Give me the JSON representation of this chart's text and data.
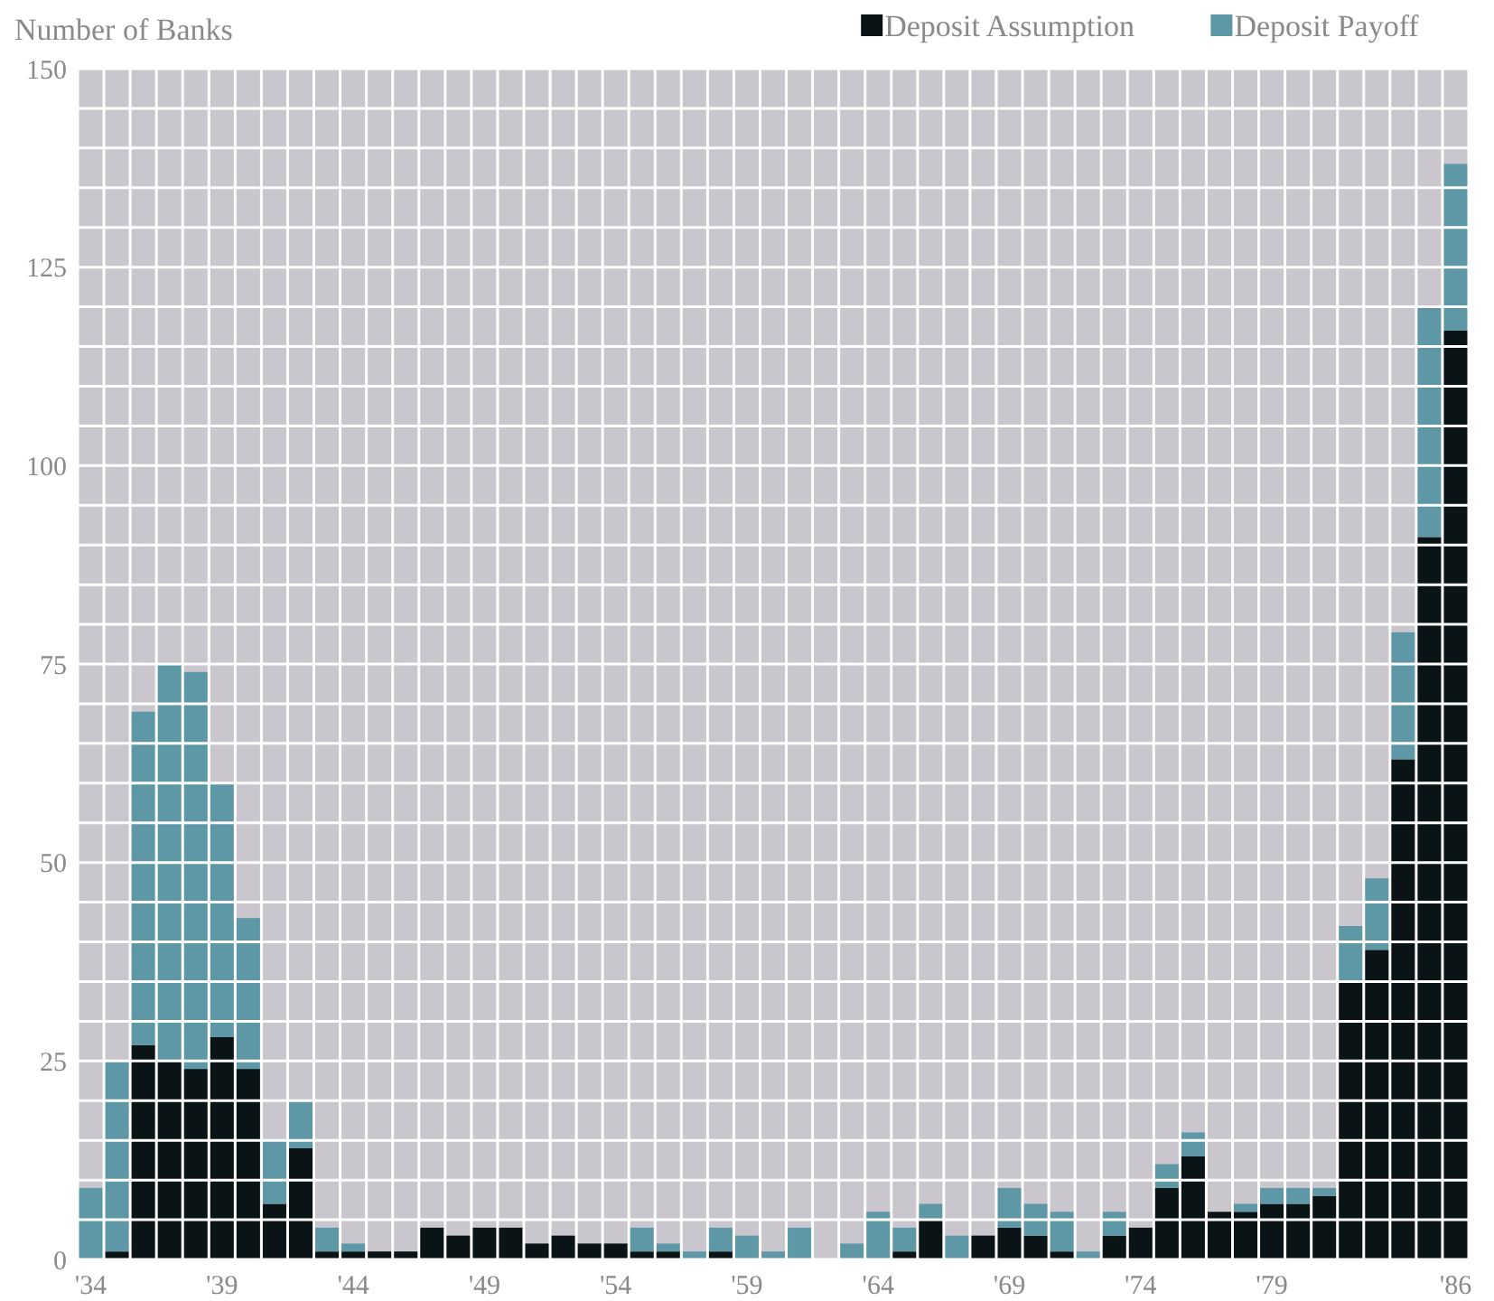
{
  "chart_data": {
    "type": "bar",
    "stacked": true,
    "ylabel": "Number of Banks",
    "categories": [
      "'34",
      null,
      null,
      null,
      null,
      "'39",
      null,
      null,
      null,
      null,
      "'44",
      null,
      null,
      null,
      null,
      "'49",
      null,
      null,
      null,
      null,
      "'54",
      null,
      null,
      null,
      null,
      "'59",
      null,
      null,
      null,
      null,
      "'64",
      null,
      null,
      null,
      null,
      "'69",
      null,
      null,
      null,
      null,
      "'74",
      null,
      null,
      null,
      null,
      "'79",
      null,
      null,
      null,
      null,
      null,
      null,
      "'86"
    ],
    "series": [
      {
        "name": "Deposit Assumption",
        "color": "#0a1416",
        "values": [
          0,
          1,
          27,
          25,
          24,
          28,
          24,
          7,
          14,
          1,
          1,
          1,
          1,
          4,
          3,
          4,
          4,
          2,
          3,
          2,
          2,
          1,
          1,
          0,
          1,
          0,
          0,
          0,
          0,
          0,
          0,
          1,
          5,
          0,
          3,
          4,
          3,
          1,
          0,
          3,
          4,
          9,
          13,
          6,
          6,
          7,
          7,
          8,
          35,
          39,
          63,
          91,
          117
        ]
      },
      {
        "name": "Deposit Payoff",
        "color": "#5e98a6",
        "values": [
          9,
          24,
          42,
          50,
          50,
          32,
          19,
          8,
          6,
          3,
          1,
          0,
          0,
          0,
          0,
          0,
          0,
          0,
          0,
          0,
          0,
          3,
          1,
          1,
          3,
          3,
          1,
          4,
          0,
          2,
          6,
          3,
          2,
          3,
          0,
          5,
          4,
          5,
          1,
          3,
          0,
          3,
          3,
          0,
          1,
          2,
          2,
          1,
          7,
          9,
          16,
          29,
          21
        ]
      }
    ],
    "ylim": [
      0,
      150
    ],
    "yticks": [
      0,
      {
        "value": 5,
        "label": null
      },
      {
        "value": 10,
        "label": null
      },
      {
        "value": 15,
        "label": null
      },
      {
        "value": 20,
        "label": null
      },
      25,
      {
        "value": 30,
        "label": null
      },
      {
        "value": 35,
        "label": null
      },
      {
        "value": 40,
        "label": null
      },
      {
        "value": 45,
        "label": null
      },
      50,
      {
        "value": 55,
        "label": null
      },
      {
        "value": 60,
        "label": null
      },
      {
        "value": 65,
        "label": null
      },
      {
        "value": 70,
        "label": null
      },
      75,
      {
        "value": 80,
        "label": null
      },
      {
        "value": 85,
        "label": null
      },
      {
        "value": 90,
        "label": null
      },
      {
        "value": 95,
        "label": null
      },
      100,
      {
        "value": 105,
        "label": null
      },
      {
        "value": 110,
        "label": null
      },
      {
        "value": 115,
        "label": null
      },
      {
        "value": 120,
        "label": null
      },
      125,
      {
        "value": 130,
        "label": null
      },
      {
        "value": 135,
        "label": null
      },
      {
        "value": 140,
        "label": null
      },
      {
        "value": 145,
        "label": null
      },
      150
    ],
    "grid": true,
    "legend": "top right"
  }
}
